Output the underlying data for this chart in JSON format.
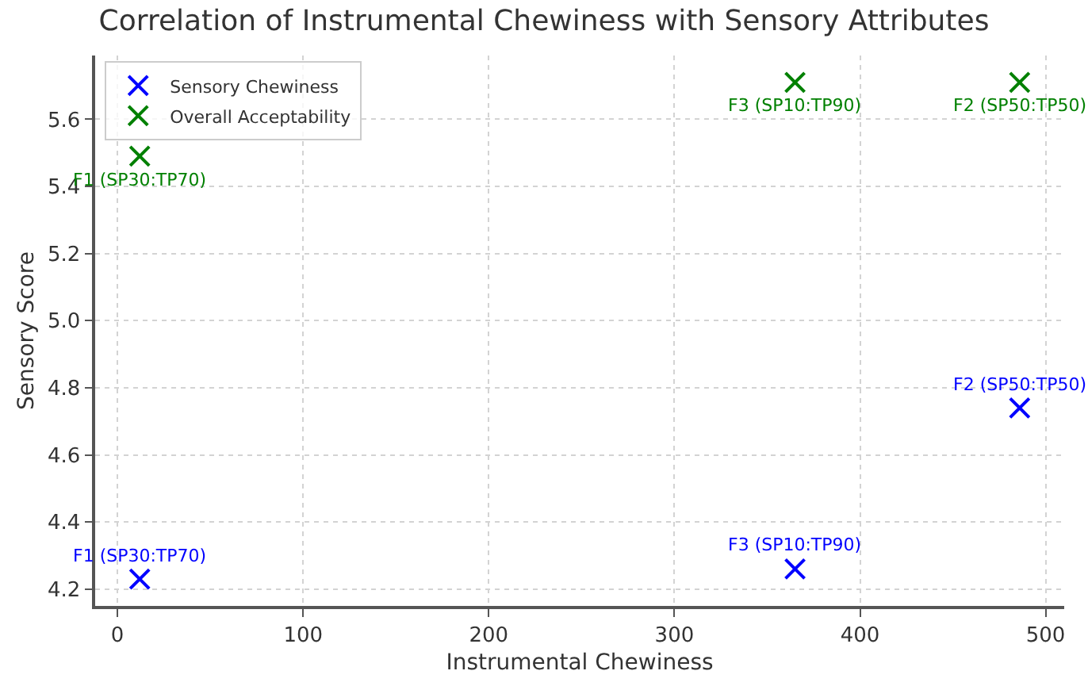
{
  "chart_data": {
    "type": "scatter",
    "title": "Correlation of Instrumental Chewiness with Sensory Attributes",
    "xlabel": "Instrumental Chewiness",
    "ylabel": "Sensory Score",
    "series": [
      {
        "name": "Sensory Chewiness",
        "color": "#0000ff",
        "x": [
          12,
          486,
          365
        ],
        "values": [
          4.23,
          4.74,
          4.26
        ]
      },
      {
        "name": "Overall Acceptability",
        "color": "#008000",
        "x": [
          12,
          486,
          365
        ],
        "values": [
          5.49,
          5.71,
          5.71
        ]
      }
    ],
    "annotations": [
      {
        "text": "F1 (SP30:TP70)",
        "x": 12,
        "y": 4.23
      },
      {
        "text": "F2 (SP50:TP50)",
        "x": 486,
        "y": 4.74
      },
      {
        "text": "F3 (SP10:TP90)",
        "x": 365,
        "y": 4.26
      },
      {
        "text": "F1 (SP30:TP70)",
        "x": 12,
        "y": 5.49
      },
      {
        "text": "F2 (SP50:TP50)",
        "x": 486,
        "y": 5.71
      },
      {
        "text": "F3 (SP10:TP90)",
        "x": 365,
        "y": 5.71
      }
    ],
    "xlim": [
      -12,
      510
    ],
    "ylim": [
      4.15,
      5.79
    ],
    "xticks": [
      0,
      100,
      200,
      300,
      400,
      500
    ],
    "yticks": [
      4.2,
      4.4,
      4.6,
      4.8,
      {
        "value": 5,
        "label": "5.0"
      },
      5.2,
      5.4,
      5.6
    ],
    "grid": true,
    "legend": "top left",
    "marker": "x"
  }
}
